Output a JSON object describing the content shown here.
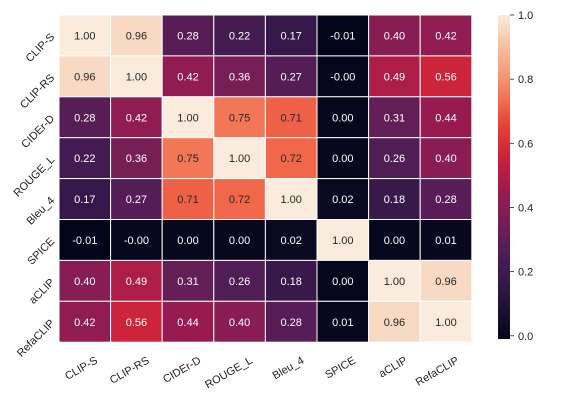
{
  "chart_data": {
    "type": "heatmap",
    "title": "",
    "xlabel": "",
    "ylabel": "",
    "x_labels": [
      "CLIP-S",
      "CLIP-RS",
      "CIDEr-D",
      "ROUGE_L",
      "Bleu_4",
      "SPICE",
      "aCLIP",
      "RefaCLIP"
    ],
    "y_labels": [
      "CLIP-S",
      "CLIP-RS",
      "CIDEr-D",
      "ROUGE_L",
      "Bleu_4",
      "SPICE",
      "aCLIP",
      "RefaCLIP"
    ],
    "values": [
      [
        1.0,
        0.96,
        0.28,
        0.22,
        0.17,
        -0.01,
        0.4,
        0.42
      ],
      [
        0.96,
        1.0,
        0.42,
        0.36,
        0.27,
        -0.0,
        0.49,
        0.56
      ],
      [
        0.28,
        0.42,
        1.0,
        0.75,
        0.71,
        0.0,
        0.31,
        0.44
      ],
      [
        0.22,
        0.36,
        0.75,
        1.0,
        0.72,
        0.0,
        0.26,
        0.4
      ],
      [
        0.17,
        0.27,
        0.71,
        0.72,
        1.0,
        0.02,
        0.18,
        0.28
      ],
      [
        -0.01,
        -0.0,
        0.0,
        0.0,
        0.02,
        1.0,
        0.0,
        0.01
      ],
      [
        0.4,
        0.49,
        0.31,
        0.26,
        0.18,
        0.0,
        1.0,
        0.96
      ],
      [
        0.42,
        0.56,
        0.44,
        0.4,
        0.28,
        0.01,
        0.96,
        1.0
      ]
    ],
    "value_labels": [
      [
        "1.00",
        "0.96",
        "0.28",
        "0.22",
        "0.17",
        "-0.01",
        "0.40",
        "0.42"
      ],
      [
        "0.96",
        "1.00",
        "0.42",
        "0.36",
        "0.27",
        "-0.00",
        "0.49",
        "0.56"
      ],
      [
        "0.28",
        "0.42",
        "1.00",
        "0.75",
        "0.71",
        "0.00",
        "0.31",
        "0.44"
      ],
      [
        "0.22",
        "0.36",
        "0.75",
        "1.00",
        "0.72",
        "0.00",
        "0.26",
        "0.40"
      ],
      [
        "0.17",
        "0.27",
        "0.71",
        "0.72",
        "1.00",
        "0.02",
        "0.18",
        "0.28"
      ],
      [
        "-0.01",
        "-0.00",
        "0.00",
        "0.00",
        "0.02",
        "1.00",
        "0.00",
        "0.01"
      ],
      [
        "0.40",
        "0.49",
        "0.31",
        "0.26",
        "0.18",
        "0.00",
        "1.00",
        "0.96"
      ],
      [
        "0.42",
        "0.56",
        "0.44",
        "0.40",
        "0.28",
        "0.01",
        "0.96",
        "1.00"
      ]
    ],
    "colormap": "rocket",
    "color_range": [
      -0.01,
      1.0
    ],
    "colorbar_ticks": [
      0.0,
      0.2,
      0.4,
      0.6,
      0.8,
      1.0
    ],
    "colorbar_tick_labels": [
      "0.0",
      "0.2",
      "0.4",
      "0.6",
      "0.8",
      "1.0"
    ],
    "grid_line_color": "#ffffff",
    "text_color_light": "#ffffff",
    "text_color_dark": "#262626"
  }
}
